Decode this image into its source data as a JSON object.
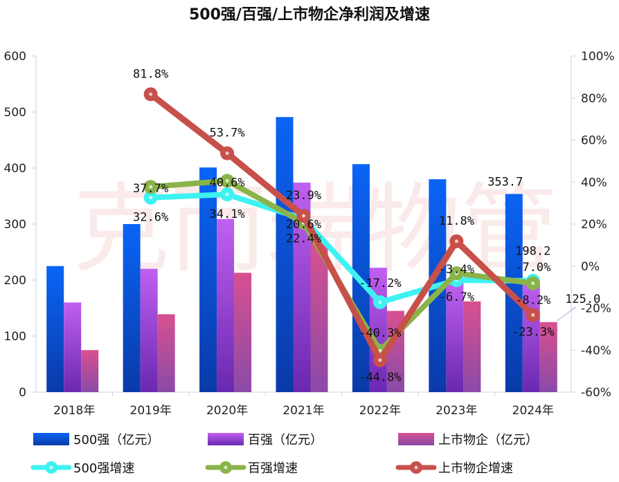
{
  "chart_data": {
    "type": "bar",
    "title": "500强/百强/上市物企净利润及增速",
    "categories": [
      "2018年",
      "2019年",
      "2020年",
      "2021年",
      "2022年",
      "2023年",
      "2024年"
    ],
    "y_left": {
      "min": 0,
      "max": 600,
      "ticks": [
        "0",
        "100",
        "200",
        "300",
        "400",
        "500",
        "600"
      ]
    },
    "y_right": {
      "min": -60,
      "max": 100,
      "ticks": [
        "-60%",
        "-40%",
        "-20%",
        "0%",
        "20%",
        "40%",
        "60%",
        "80%",
        "100%"
      ]
    },
    "bar_series": [
      {
        "name": "500强（亿元）",
        "values": [
          225,
          300,
          401,
          491,
          407,
          380,
          353.7
        ],
        "color": "#0a56e0"
      },
      {
        "name": "百强（亿元）",
        "values": [
          160,
          220,
          309,
          374,
          222,
          198.2,
          198.2
        ],
        "color": "#a040e0"
      },
      {
        "name": "上市物企（亿元）",
        "values": [
          75,
          139,
          213,
          268,
          145,
          162,
          125.0
        ],
        "color": "#c84a8a"
      }
    ],
    "line_series": [
      {
        "name": "500强增速",
        "values": [
          null,
          32.6,
          34.1,
          22.4,
          -17.2,
          -6.7,
          -7.0
        ],
        "labels": [
          "",
          "32.6%",
          "34.1%",
          "22.4%",
          "-17.2%",
          "-6.7%",
          "-7.0%"
        ],
        "color": "#3ef2f2"
      },
      {
        "name": "百强增速",
        "values": [
          null,
          37.7,
          40.6,
          20.6,
          -40.3,
          -3.4,
          -8.2
        ],
        "labels": [
          "",
          "37.7%",
          "40.6%",
          "20.6%",
          "-40.3%",
          "-3.4%",
          "-8.2%"
        ],
        "color": "#8ab34a"
      },
      {
        "name": "上市物企增速",
        "values": [
          null,
          81.8,
          53.7,
          23.9,
          -44.8,
          11.8,
          -23.3
        ],
        "labels": [
          "",
          "81.8%",
          "53.7%",
          "23.9%",
          "-44.8%",
          "11.8%",
          "-23.3%"
        ],
        "color": "#c8504a"
      }
    ],
    "bar_value_labels": [
      {
        "text": "353.7"
      },
      {
        "text": "198.2"
      },
      {
        "text": "125.0"
      }
    ],
    "watermark": "克而瑞物管",
    "legend_position": "bottom"
  }
}
